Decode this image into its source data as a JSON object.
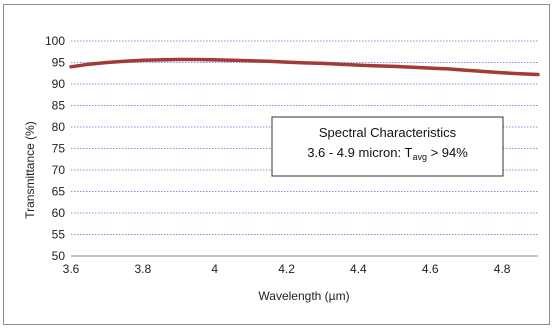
{
  "chart_data": {
    "type": "line",
    "xlabel": "Wavelength (µm)",
    "ylabel": "Transmittance (%)",
    "xlim": [
      3.6,
      4.9
    ],
    "ylim": [
      50,
      100
    ],
    "x_ticks": [
      "3.6",
      "3.8",
      "4",
      "4.2",
      "4.4",
      "4.6",
      "4.8"
    ],
    "y_ticks": [
      "100",
      "95",
      "90",
      "85",
      "80",
      "75",
      "70",
      "65",
      "60",
      "55",
      "50"
    ],
    "grid": "horizontal",
    "series": [
      {
        "color": "#a33a35",
        "x": [
          3.6,
          3.65,
          3.7,
          3.75,
          3.8,
          3.85,
          3.9,
          3.95,
          4.0,
          4.05,
          4.1,
          4.15,
          4.2,
          4.25,
          4.3,
          4.35,
          4.4,
          4.45,
          4.5,
          4.55,
          4.6,
          4.65,
          4.7,
          4.75,
          4.8,
          4.85,
          4.9
        ],
        "y": [
          94.0,
          94.6,
          95.0,
          95.3,
          95.5,
          95.6,
          95.7,
          95.7,
          95.6,
          95.5,
          95.4,
          95.3,
          95.1,
          94.9,
          94.8,
          94.6,
          94.4,
          94.2,
          94.1,
          93.9,
          93.7,
          93.5,
          93.2,
          92.9,
          92.6,
          92.4,
          92.2
        ]
      }
    ],
    "annotation": {
      "line1": "Spectral Characteristics",
      "line2_prefix": "3.6  - 4.9 micron: T",
      "line2_sub": "avg",
      "line2_suffix": " > 94%"
    }
  }
}
